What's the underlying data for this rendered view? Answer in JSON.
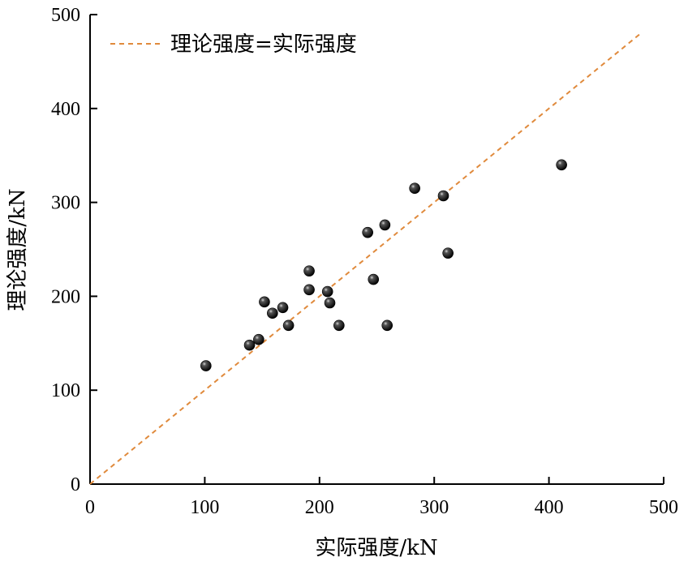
{
  "chart_data": {
    "type": "scatter",
    "title": "",
    "xlabel": "实际强度/kN",
    "ylabel": "理论强度/kN",
    "xlim": [
      0,
      500
    ],
    "ylim": [
      0,
      500
    ],
    "xticks": [
      0,
      100,
      200,
      300,
      400,
      500
    ],
    "yticks": [
      0,
      100,
      200,
      300,
      400,
      500
    ],
    "xtick_labels": [
      "0",
      "100",
      "200",
      "300",
      "400",
      "500"
    ],
    "ytick_labels": [
      "0",
      "100",
      "200",
      "300",
      "400",
      "500"
    ],
    "grid": false,
    "legend_position": "top-left",
    "series": [
      {
        "type": "scatter",
        "color": "#000000",
        "x": [
          101,
          139,
          147,
          152,
          159,
          168,
          173,
          191,
          191,
          207,
          209,
          217,
          242,
          247,
          257,
          259,
          283,
          308,
          312,
          411
        ],
        "y": [
          126,
          148,
          154,
          194,
          182,
          188,
          169,
          227,
          207,
          205,
          193,
          169,
          268,
          218,
          276,
          169,
          315,
          307,
          246,
          340
        ]
      },
      {
        "name": "理论强度=实际强度",
        "type": "line",
        "style": "dashed",
        "color": "#E08A3C",
        "x": [
          0,
          480
        ],
        "y": [
          0,
          480
        ]
      }
    ]
  }
}
